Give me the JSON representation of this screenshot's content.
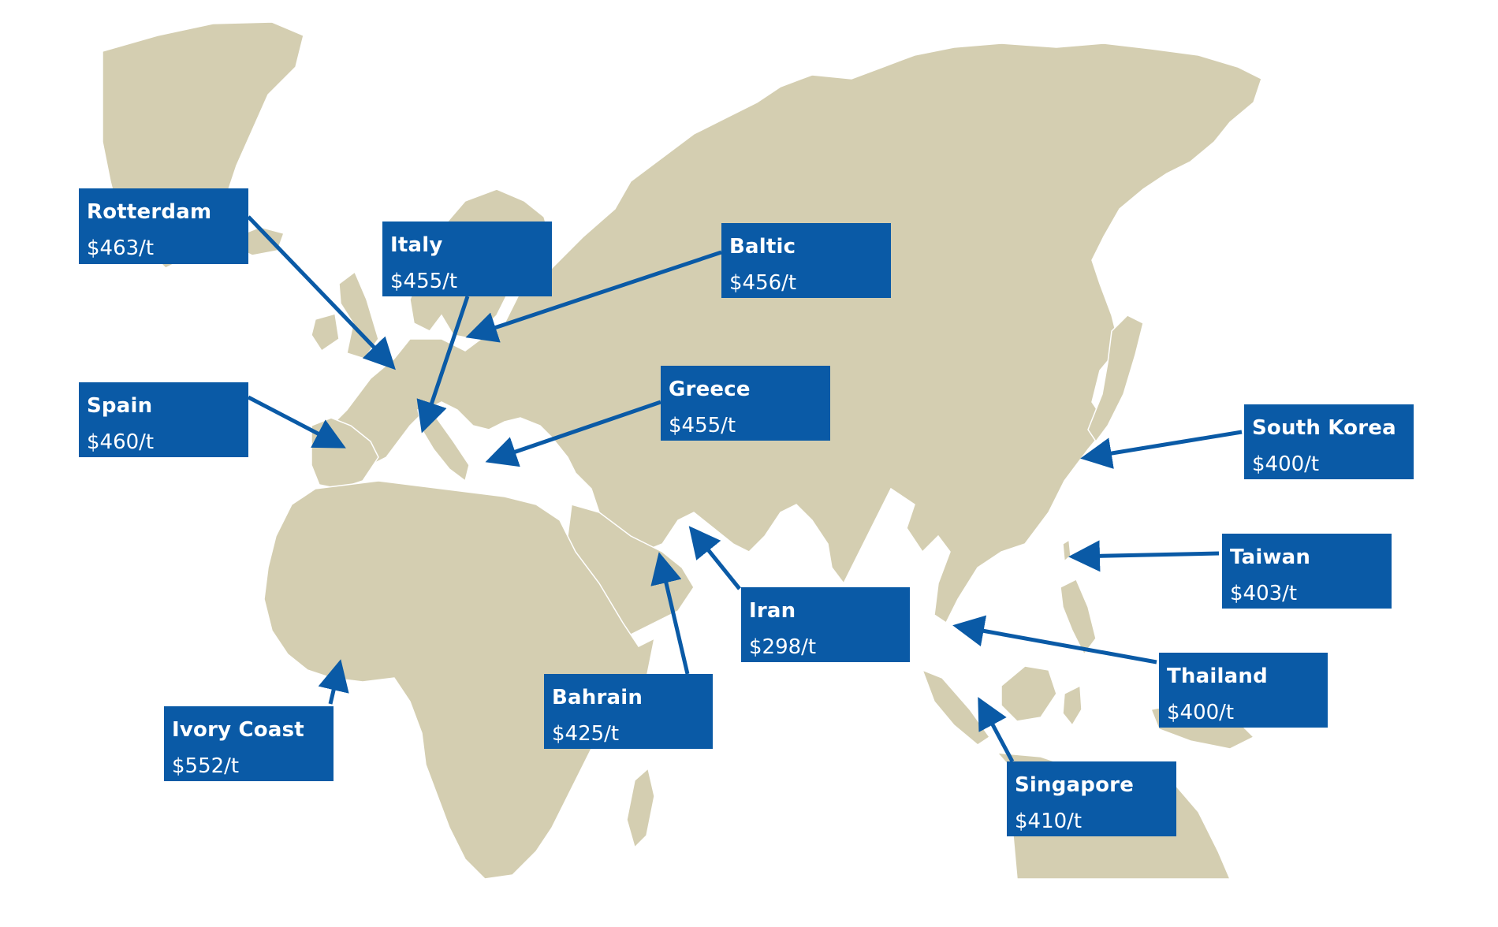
{
  "map": {
    "land_color": "#d4ceb1",
    "border_color": "#ffffff",
    "sea_color": "#ffffff",
    "label_color": "#0a5aa6",
    "arrow_color": "#0a5aa6"
  },
  "markers": [
    {
      "id": "rotterdam",
      "name": "Rotterdam",
      "price": "$463/t"
    },
    {
      "id": "italy",
      "name": "Italy",
      "price": "$455/t"
    },
    {
      "id": "baltic",
      "name": "Baltic",
      "price": "$456/t"
    },
    {
      "id": "spain",
      "name": "Spain",
      "price": "$460/t"
    },
    {
      "id": "greece",
      "name": "Greece",
      "price": "$455/t"
    },
    {
      "id": "south-korea",
      "name": "South Korea",
      "price": "$400/t"
    },
    {
      "id": "taiwan",
      "name": "Taiwan",
      "price": "$403/t"
    },
    {
      "id": "iran",
      "name": "Iran",
      "price": "$298/t"
    },
    {
      "id": "thailand",
      "name": "Thailand",
      "price": "$400/t"
    },
    {
      "id": "bahrain",
      "name": "Bahrain",
      "price": "$425/t"
    },
    {
      "id": "ivory-coast",
      "name": "Ivory Coast",
      "price": "$552/t"
    },
    {
      "id": "singapore",
      "name": "Singapore",
      "price": "$410/t"
    }
  ]
}
